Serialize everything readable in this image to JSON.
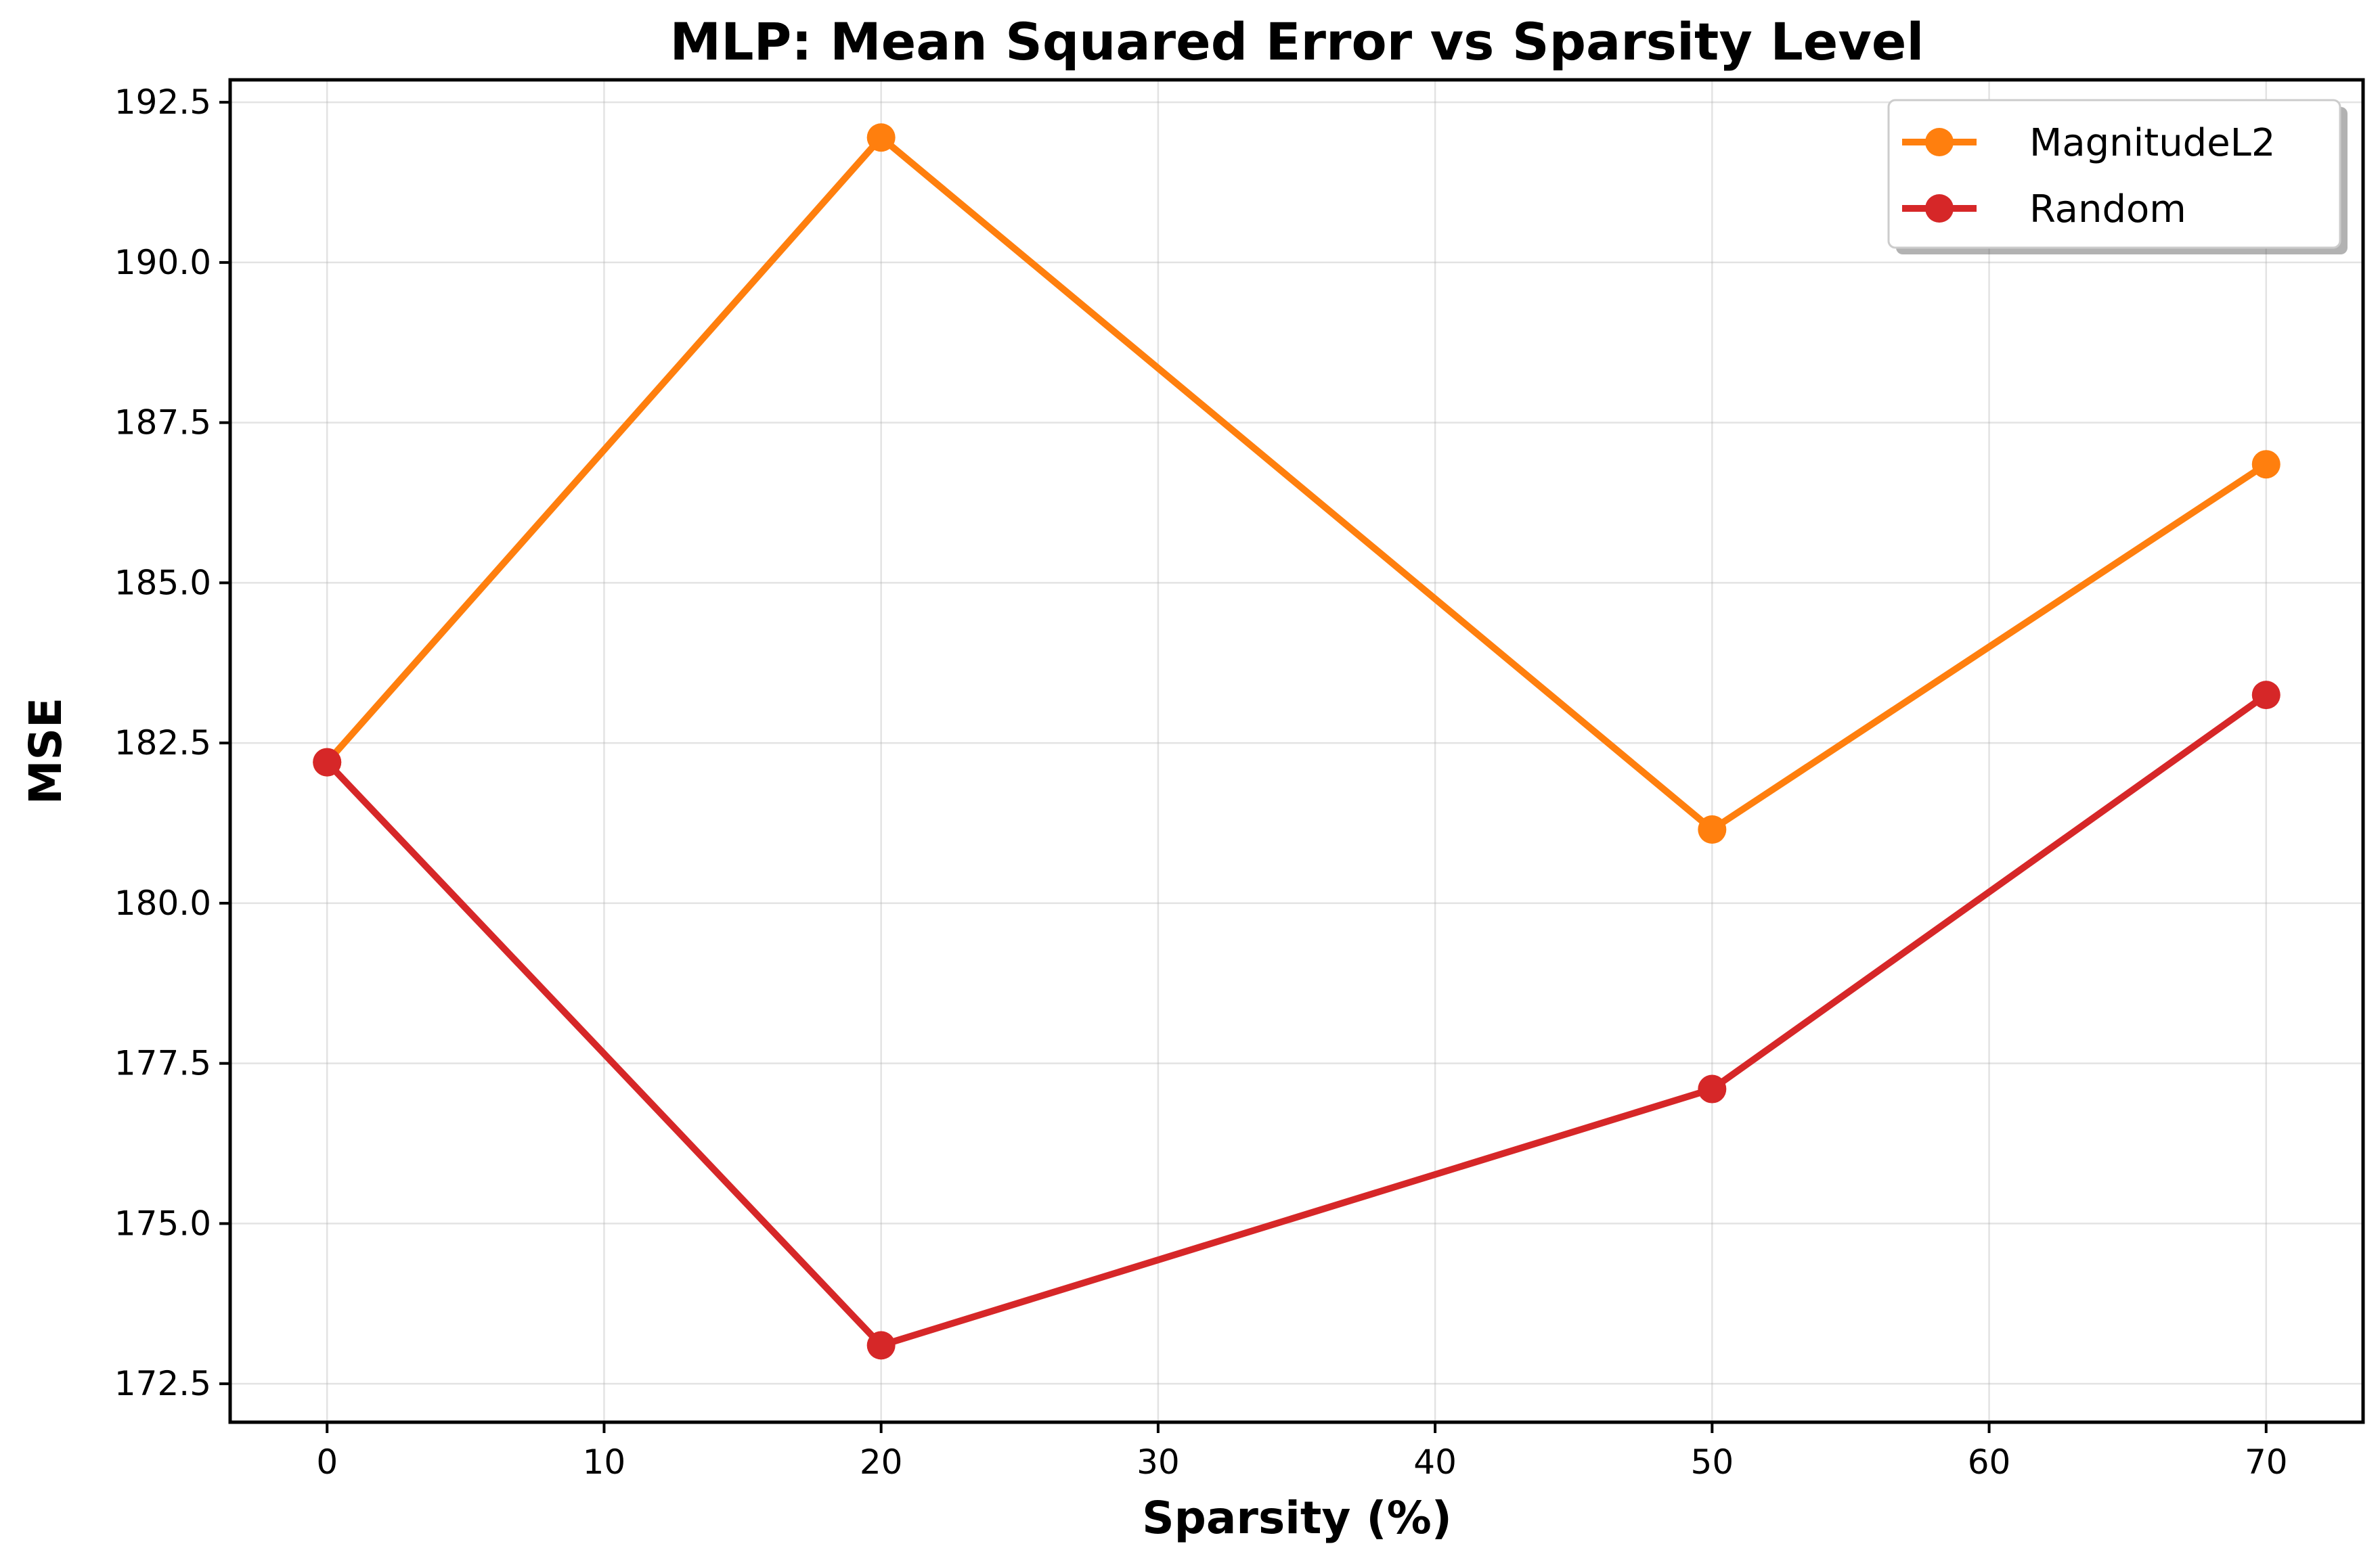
{
  "chart_data": {
    "type": "line",
    "title": "MLP: Mean Squared Error vs Sparsity Level",
    "xlabel": "Sparsity (%)",
    "ylabel": "MSE",
    "xlim": [
      -3.5,
      73.5
    ],
    "ylim": [
      171.9,
      192.85
    ],
    "xticks": [
      0,
      10,
      20,
      30,
      40,
      50,
      60,
      70
    ],
    "xtick_labels": [
      "0",
      "10",
      "20",
      "30",
      "40",
      "50",
      "60",
      "70"
    ],
    "yticks": [
      172.5,
      175.0,
      177.5,
      180.0,
      182.5,
      185.0,
      187.5,
      190.0,
      192.5
    ],
    "ytick_labels": [
      "172.5",
      "175.0",
      "177.5",
      "180.0",
      "182.5",
      "185.0",
      "187.5",
      "190.0",
      "192.5"
    ],
    "grid": true,
    "legend_position": "top-right",
    "series": [
      {
        "name": "MagnitudeL2",
        "color": "#ff7f0e",
        "x": [
          0,
          20,
          50,
          70
        ],
        "y": [
          182.2,
          191.95,
          181.15,
          186.85
        ]
      },
      {
        "name": "Random",
        "color": "#d62728",
        "x": [
          0,
          20,
          50,
          70
        ],
        "y": [
          182.2,
          173.1,
          177.1,
          183.25
        ]
      }
    ]
  }
}
